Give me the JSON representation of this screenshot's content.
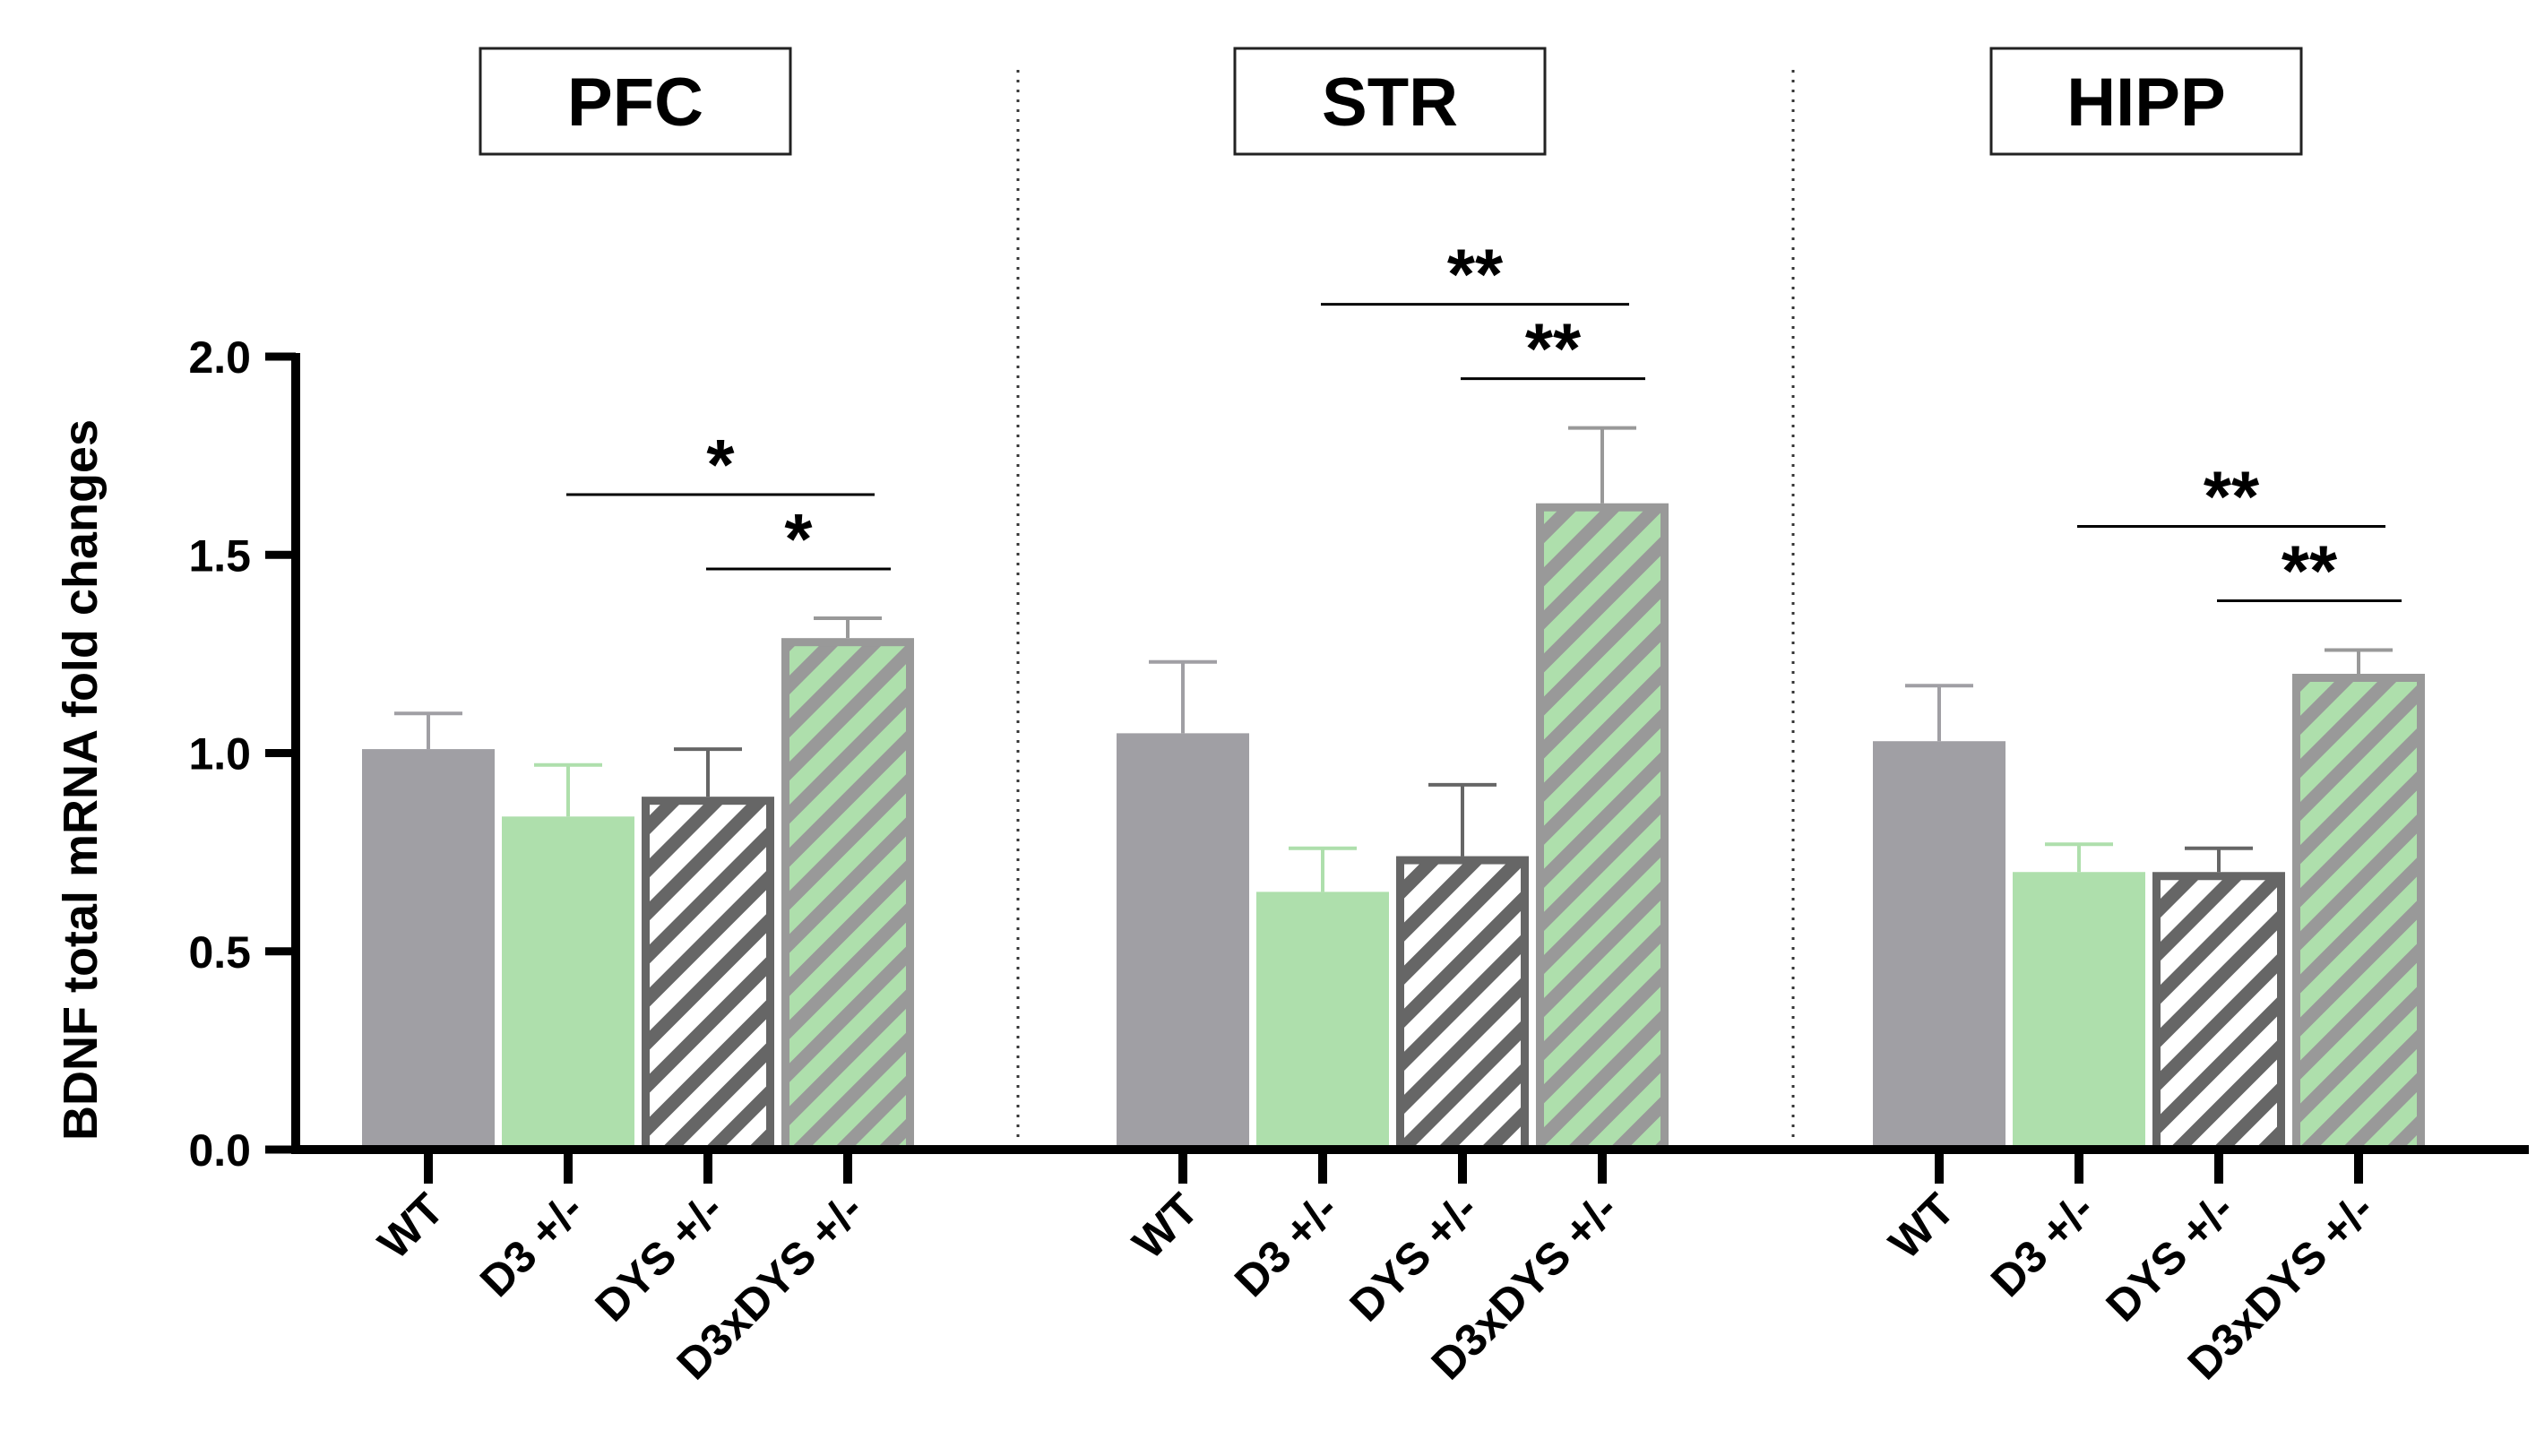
{
  "chart_data": {
    "type": "bar",
    "ylabel": "BDNF total mRNA fold changes",
    "ylim": [
      0,
      2.0
    ],
    "yticks": [
      "0.0",
      "0.5",
      "1.0",
      "1.5",
      "2.0"
    ],
    "categories": [
      "WT",
      "D3 +/-",
      "DYS +/-",
      "D3xDYS +/-"
    ],
    "category_styles": {
      "WT": {
        "fill": "#a09fa4",
        "pattern": "none"
      },
      "D3 +/-": {
        "fill": "#aedfac",
        "pattern": "none"
      },
      "DYS +/-": {
        "fill": "#ffffff",
        "pattern": "hatch",
        "hatch_color": "#666666",
        "edge": "#666666"
      },
      "D3xDYS +/-": {
        "fill": "#aedfac",
        "pattern": "hatch",
        "hatch_color": "#999999",
        "edge": "#999999"
      }
    },
    "panels": [
      {
        "title": "PFC",
        "values": [
          1.01,
          0.84,
          0.89,
          1.29
        ],
        "errors": [
          0.09,
          0.13,
          0.12,
          0.05
        ],
        "significance": [
          {
            "from": 1,
            "to": 3,
            "label": "*"
          },
          {
            "from": 2,
            "to": 3,
            "label": "*"
          }
        ]
      },
      {
        "title": "STR",
        "values": [
          1.05,
          0.65,
          0.74,
          1.63
        ],
        "errors": [
          0.18,
          0.11,
          0.18,
          0.19
        ],
        "significance": [
          {
            "from": 1,
            "to": 3,
            "label": "**"
          },
          {
            "from": 2,
            "to": 3,
            "label": "**"
          }
        ]
      },
      {
        "title": "HIPP",
        "values": [
          1.03,
          0.7,
          0.7,
          1.2
        ],
        "errors": [
          0.14,
          0.07,
          0.06,
          0.06
        ],
        "significance": [
          {
            "from": 1,
            "to": 3,
            "label": "**"
          },
          {
            "from": 2,
            "to": 3,
            "label": "**"
          }
        ]
      }
    ]
  }
}
